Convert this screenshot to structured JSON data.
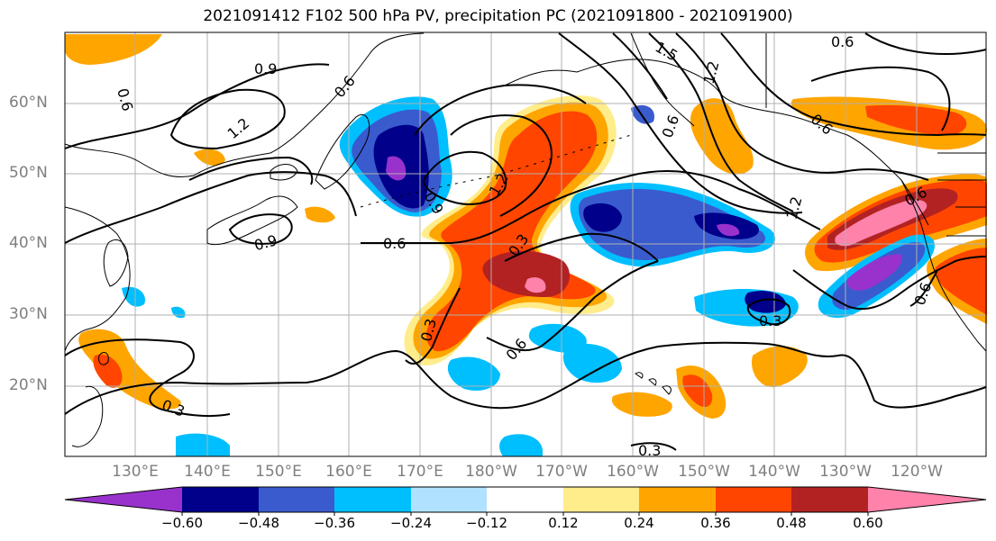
{
  "title": "2021091412 F102 500 hPa PV, precipitation PC (2021091800 - 2021091900)",
  "map": {
    "lat_labels": [
      "60°N",
      "50°N",
      "40°N",
      "30°N",
      "20°N"
    ],
    "lon_labels": [
      "130°E",
      "140°E",
      "150°E",
      "160°E",
      "170°E",
      "180°W",
      "170°W",
      "160°W",
      "150°W",
      "140°W",
      "130°W",
      "120°W"
    ],
    "contour_labels": [
      "0.9",
      "0.6",
      "1.2",
      "0.9",
      "0.6",
      "1.2",
      "0.9",
      "0.3",
      "0.6",
      "1.5",
      "1.2",
      "0.6",
      "0.6",
      "1.2",
      "0.6",
      "0.3",
      "0.3",
      "0.6",
      "0.3",
      "0.3",
      "0.6",
      "0.6"
    ],
    "land_color": "#000000"
  },
  "colorbar": {
    "colors": [
      "#9932CC",
      "#00008B",
      "#3A5BCD",
      "#00BFFF",
      "#B0E2FF",
      "#FFFFFF",
      "#FFEC8B",
      "#FFA500",
      "#FF4500",
      "#B22222",
      "#FF82AB"
    ],
    "ticks": [
      "−0.60",
      "−0.48",
      "−0.36",
      "−0.24",
      "−0.12",
      "0.12",
      "0.24",
      "0.36",
      "0.48",
      "0.60"
    ]
  }
}
